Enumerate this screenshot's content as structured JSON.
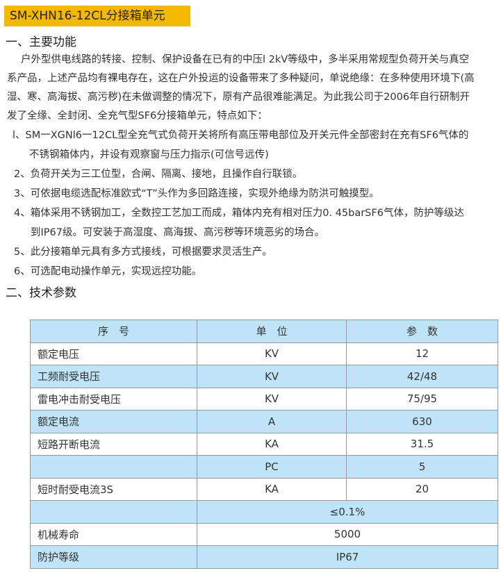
{
  "title": "SM-XHN16-12CL分接箱单元",
  "section1": {
    "heading": "一、主要功能",
    "paragraph_lines": [
      "户外型供电线路的转接、控制、保护设备在已有的中压l 2kV等级中，多半采用常规型负荷开关与真空",
      "系产品，上述产品均有裸电存在，这在户外投运的设备带来了多种疑问，单说绝缘：在多种使用环境下(高",
      "湿、寒、高海拔、高污秽)在未做调整的情况下，原有产品很难能满足。为此我公司于2006年自行研制开",
      "发了全缘、全封闭、全充气型SF6分接箱单元，特点如下："
    ],
    "items": [
      {
        "lines": [
          "l、SM一XGNl6一12CL型全充气式负荷开关将所有高压带电部位及开关元件全部密封在充有SF6气体的",
          "不锈钢箱体内，并设有观察窗与压力指示(可信号远传)"
        ]
      },
      {
        "lines": [
          "2、负荷开关为三工位型，合闸、隔离、接地，且操作自行联锁。"
        ]
      },
      {
        "lines": [
          "3、可依据电缆选配标准欧式“T”头作为多回路连接，实现外绝缘为防洪可触摸型。"
        ]
      },
      {
        "lines": [
          "4、箱体采用不锈钢加工，全数控工艺加工而成，箱体内充有相对压力0. 45barSF6气体，防护等级达",
          "到IP67级。可安装于高湿度、高海拔、高污秽等环境恶劣的场合。"
        ]
      },
      {
        "lines": [
          "5、此分接箱单元具有多方式接线，可根据要求灵活生产。"
        ]
      },
      {
        "lines": [
          "6、可选配电动操作单元，实现远控功能。"
        ]
      }
    ]
  },
  "section2": {
    "heading": "二、技术参数",
    "table": {
      "headers": [
        "序　号",
        "单　位",
        "参　数"
      ],
      "rows": [
        [
          "额定电压",
          "KV",
          "12"
        ],
        [
          "工频耐受电压",
          "KV",
          "42/48"
        ],
        [
          "雷电冲击耐受电压",
          "KV",
          "75/95"
        ],
        [
          "额定电流",
          "A",
          "630"
        ],
        [
          "短路开断电流",
          "KA",
          "31.5"
        ],
        [
          "",
          "PC",
          "5"
        ],
        [
          "短时耐受电流3S",
          "KA",
          "20"
        ],
        [
          "",
          "≤0.1%"
        ],
        [
          "机械寿命",
          "5000"
        ],
        [
          "防护等级",
          "IP67"
        ]
      ]
    }
  },
  "colors": {
    "banner": "#f5b800",
    "table_row_blue": "#bfe4f7"
  }
}
